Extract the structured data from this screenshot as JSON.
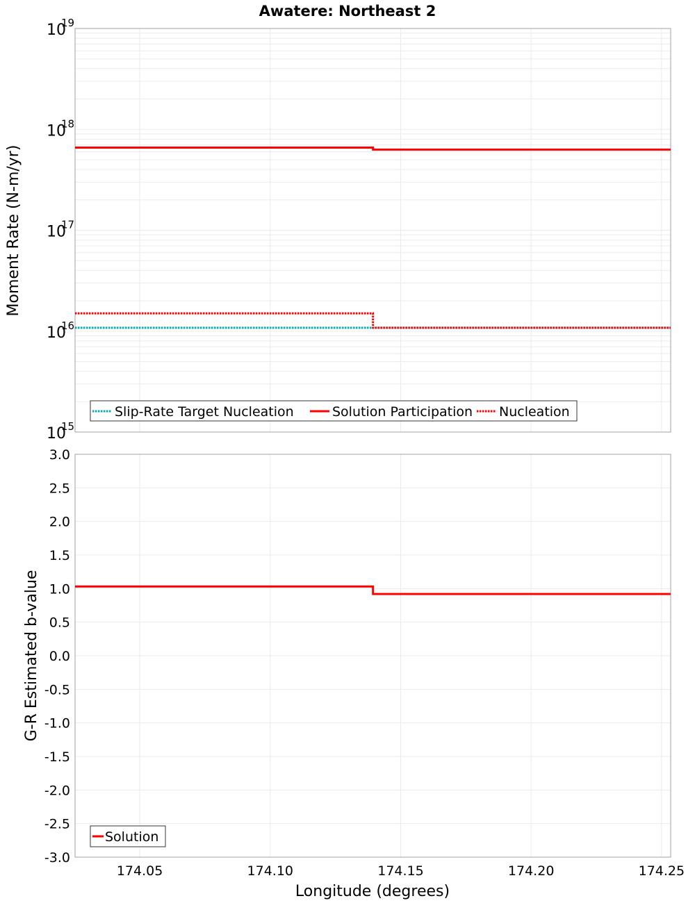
{
  "chart_data": [
    {
      "type": "line",
      "title": "Awatere: Northeast 2",
      "xlabel": "",
      "ylabel": "Moment Rate (N-m/yr)",
      "yscale": "log",
      "xlim": [
        174.0252,
        174.2535
      ],
      "ylim": [
        1000000000000000.0,
        1e+19
      ],
      "ytick_labels": [
        {
          "base": "10",
          "exp": "15",
          "value": 15
        },
        {
          "base": "10",
          "exp": "16",
          "value": 16
        },
        {
          "base": "10",
          "exp": "17",
          "value": 17
        },
        {
          "base": "10",
          "exp": "18",
          "value": 18
        },
        {
          "base": "10",
          "exp": "19",
          "value": 19
        }
      ],
      "grid": true,
      "legend_placement": "bottom-left",
      "series": [
        {
          "name": "Slip-Rate Target Nucleation",
          "color": "#00b0b0",
          "style": "dotted",
          "x": [
            174.0252,
            174.1394,
            174.1394,
            174.2535
          ],
          "y": [
            1.08e+16,
            1.08e+16,
            1.08e+16,
            1.08e+16
          ]
        },
        {
          "name": "Solution Participation",
          "color": "#ff0000",
          "style": "solid",
          "x": [
            174.0252,
            174.1394,
            174.1394,
            174.2535
          ],
          "y": [
            6.6e+17,
            6.6e+17,
            6.3e+17,
            6.3e+17
          ]
        },
        {
          "name": "Nucleation",
          "color": "#ff0000",
          "style": "dotted",
          "x": [
            174.0252,
            174.1394,
            174.1394,
            174.2535
          ],
          "y": [
            1.5e+16,
            1.5e+16,
            1.08e+16,
            1.08e+16
          ]
        }
      ]
    },
    {
      "type": "line",
      "title": "",
      "xlabel": "Longitude (degrees)",
      "ylabel": "G-R Estimated b-value",
      "xlim": [
        174.0252,
        174.2535
      ],
      "ylim": [
        -3.0,
        3.0
      ],
      "xticks": [
        "174.05",
        "174.10",
        "174.15",
        "174.20",
        "174.25"
      ],
      "yticks": [
        "3.0",
        "2.5",
        "2.0",
        "1.5",
        "1.0",
        "0.5",
        "0.0",
        "-0.5",
        "-1.0",
        "-1.5",
        "-2.0",
        "-2.5",
        "-3.0"
      ],
      "grid": true,
      "legend_placement": "bottom-left",
      "series": [
        {
          "name": "Solution",
          "color": "#ff0000",
          "style": "solid",
          "x": [
            174.0252,
            174.1394,
            174.1394,
            174.2535
          ],
          "y": [
            1.03,
            1.03,
            0.92,
            0.92
          ]
        }
      ]
    }
  ]
}
